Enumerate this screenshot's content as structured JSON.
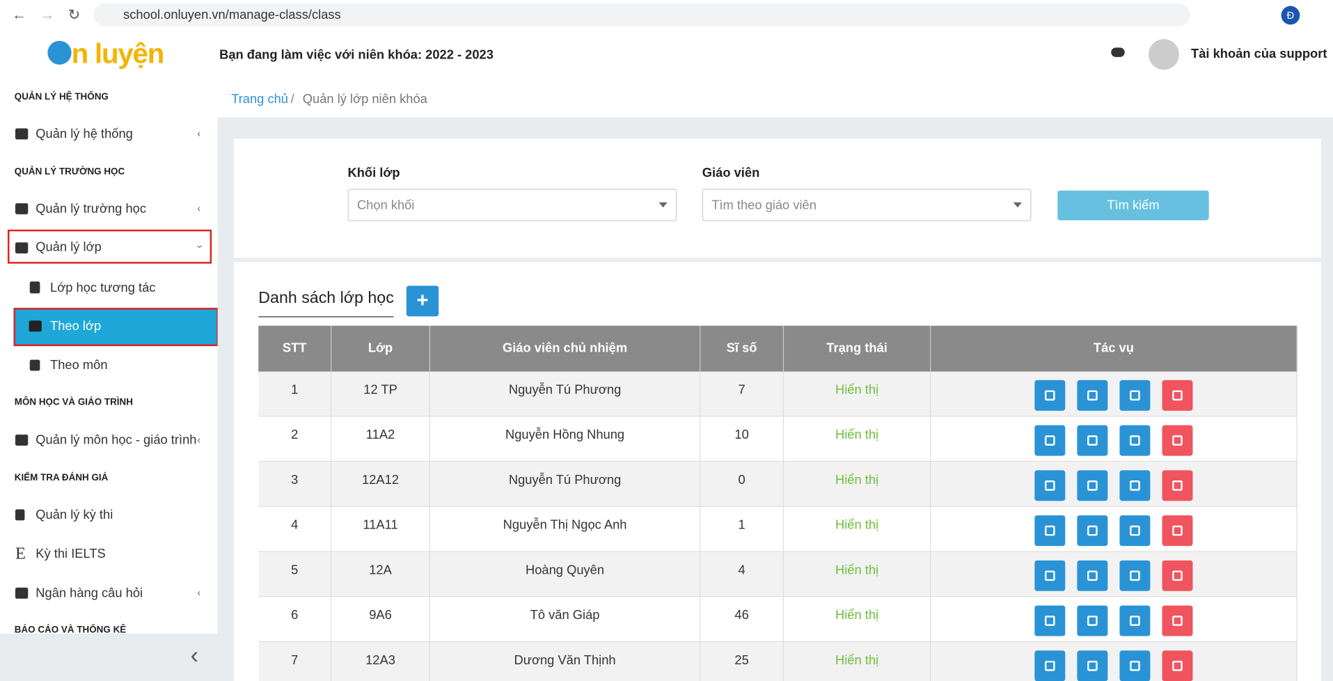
{
  "browser": {
    "url": "school.onluyen.vn/manage-class/class",
    "profile": "Đ"
  },
  "header": {
    "logo": "n luyện",
    "school_year": "Bạn đang làm việc với niên khóa: 2022 - 2023",
    "account": "Tài khoản của support"
  },
  "sidebar": {
    "sections": [
      {
        "title": "QUẢN LÝ HỆ THỐNG",
        "items": [
          "Quản lý hệ thống"
        ]
      },
      {
        "title": "QUẢN LÝ TRƯỜNG HỌC",
        "items": [
          "Quản lý trường học",
          "Quản lý lớp"
        ],
        "subitems": [
          "Lớp học tương tác",
          "Theo lớp",
          "Theo môn"
        ]
      },
      {
        "title": "MÔN HỌC VÀ GIÁO TRÌNH",
        "items": [
          "Quản lý môn học - giáo trình"
        ]
      },
      {
        "title": "KIỂM TRA ĐÁNH GIÁ",
        "items": [
          "Quản lý kỳ thi",
          "Kỳ thi IELTS",
          "Ngân hàng câu hỏi"
        ]
      },
      {
        "title": "BÁO CÁO VÀ THỐNG KÊ"
      }
    ]
  },
  "breadcrumb": [
    "Trang chủ",
    "Quản lý lớp niên khóa"
  ],
  "filters": [
    {
      "label": "Khối lớp",
      "placeholder": "Chọn khối"
    },
    {
      "label": "Giáo viên",
      "placeholder": "Tìm theo giáo viên"
    }
  ],
  "search_button": "Tìm kiếm",
  "list_title": "Danh sách lớp học",
  "table": {
    "columns": [
      "STT",
      "Lớp",
      "Giáo viên chủ nhiệm",
      "Sĩ số",
      "Trạng thái",
      "Tác vụ"
    ],
    "rows": [
      [
        1,
        "12 TP",
        "Nguyễn Tú Phương",
        7,
        "Hiển thị"
      ],
      [
        2,
        "11A2",
        "Nguyễn Hồng Nhung",
        10,
        "Hiển thị"
      ],
      [
        3,
        "12A12",
        "Nguyễn Tú Phương",
        0,
        "Hiển thị"
      ],
      [
        4,
        "11A11",
        "Nguyễn Thị Ngọc Anh",
        1,
        "Hiển thị"
      ],
      [
        5,
        "12A",
        "Hoàng Quyên",
        4,
        "Hiển thị"
      ],
      [
        6,
        "9A6",
        "Tô văn Giáp",
        46,
        "Hiển thị"
      ],
      [
        7,
        "12A3",
        "Dương Văn Thịnh",
        25,
        "Hiển thị"
      ]
    ]
  }
}
